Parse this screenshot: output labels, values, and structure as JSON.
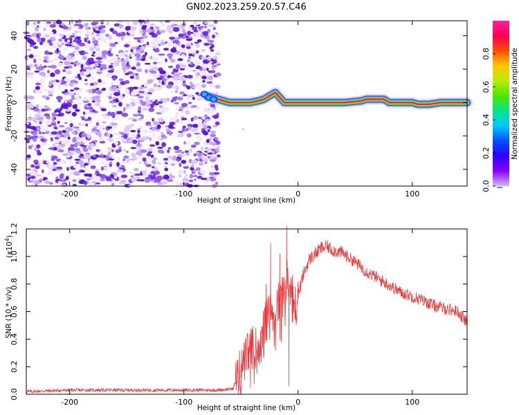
{
  "title": "GN02.2023.259.20.57.C46",
  "colors": {
    "signal": "#ff0000",
    "snr_line": "#e8383a",
    "noise": "#7a3df0",
    "axes": "#000000"
  },
  "chart_data": [
    {
      "type": "heatmap",
      "title": "GN02.2023.259.20.57.C46",
      "xlabel": "Height of straight line (km)",
      "ylabel": "Frequency (Hz)",
      "xlim": [
        -238,
        148
      ],
      "ylim": [
        -50,
        49
      ],
      "xticks": [
        -200,
        -100,
        0,
        100
      ],
      "xtick_labels": [
        "-200",
        "-100",
        "0",
        "100"
      ],
      "yticks": [
        -40,
        -20,
        0,
        20,
        40
      ],
      "ytick_labels": [
        "-40",
        "-20",
        "0",
        "20",
        "40"
      ],
      "noise_region_x": [
        -238,
        -72
      ],
      "signal_trace": {
        "x": [
          -80,
          -70,
          -60,
          -50,
          -42,
          -35,
          -30,
          -25,
          -20,
          -16,
          -12,
          -5,
          0,
          20,
          40,
          55,
          60,
          65,
          75,
          80,
          90,
          95,
          100,
          105,
          115,
          125,
          135,
          148
        ],
        "y": [
          4,
          2,
          0,
          0,
          0,
          1,
          2,
          4,
          6,
          3,
          0,
          0,
          0,
          0,
          0,
          1,
          2,
          2,
          2,
          0,
          0,
          0,
          0,
          -1,
          -1,
          0,
          0,
          0
        ]
      },
      "colorbar": {
        "label": "Normalized spectral amplitude",
        "range": [
          0.0,
          1.0
        ],
        "ticks": [
          0.0,
          0.2,
          0.4,
          0.6,
          0.8
        ],
        "tick_labels": [
          "0.0",
          "0.2",
          "0.4",
          "0.6",
          "0.8"
        ],
        "colormap": [
          "#d0bcff",
          "#8800ff",
          "#3000ff",
          "#0050ff",
          "#00c8ff",
          "#00e68c",
          "#50e600",
          "#b4ee00",
          "#ffc800",
          "#ff5000",
          "#ff0050",
          "#ff1ea0"
        ]
      }
    },
    {
      "type": "line",
      "xlabel": "Height of straight line (km)",
      "ylabel": "SNR (10 * v/v)",
      "scale_label": "(x10",
      "scale_exponent": "4",
      "scale_close": ")",
      "xlim": [
        -238,
        148
      ],
      "ylim": [
        0.0,
        1.2
      ],
      "xticks": [
        -200,
        -100,
        0,
        100
      ],
      "xtick_labels": [
        "-200",
        "-100",
        "0",
        "100"
      ],
      "yticks": [
        0.0,
        0.2,
        0.4,
        0.6,
        0.8,
        1.0,
        1.2
      ],
      "ytick_labels": [
        "0.0",
        "0.2",
        "0.4",
        "0.6",
        "0.8",
        "1.0",
        "1.2"
      ],
      "series": [
        {
          "name": "SNR",
          "x": [
            -238,
            -200,
            -150,
            -100,
            -70,
            -57,
            -52,
            -48,
            -44,
            -40,
            -36,
            -32,
            -28,
            -24,
            -20,
            -16,
            -12,
            -9,
            -6,
            -3,
            0,
            5,
            10,
            15,
            20,
            25,
            30,
            40,
            50,
            60,
            70,
            80,
            90,
            100,
            110,
            120,
            130,
            140,
            148
          ],
          "y": [
            0.02,
            0.03,
            0.03,
            0.03,
            0.03,
            0.04,
            0.15,
            0.22,
            0.3,
            0.34,
            0.36,
            0.42,
            0.55,
            0.62,
            0.6,
            0.68,
            0.72,
            0.88,
            0.78,
            0.64,
            0.72,
            0.88,
            0.98,
            1.02,
            1.06,
            1.07,
            1.05,
            1.02,
            0.96,
            0.89,
            0.84,
            0.79,
            0.74,
            0.71,
            0.68,
            0.64,
            0.62,
            0.6,
            0.52
          ],
          "spikes": [
            {
              "x": -28,
              "y": 0.8
            },
            {
              "x": -24,
              "y": 1.1
            },
            {
              "x": -16,
              "y": 1.02
            },
            {
              "x": -10,
              "y": 1.22
            },
            {
              "x": -8,
              "y": 0.06
            }
          ]
        }
      ]
    }
  ]
}
